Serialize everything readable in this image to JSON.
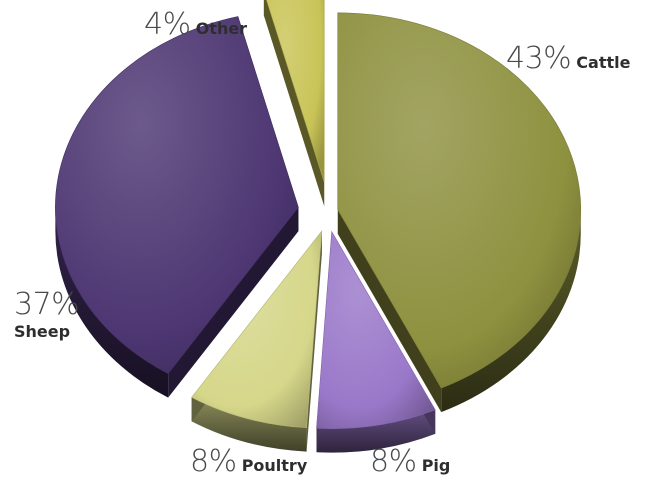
{
  "chart_data": {
    "type": "pie",
    "style": "3d-exploded",
    "slices": [
      {
        "label": "Cattle",
        "value": 43,
        "pct_text": "43%",
        "color": "#8e913f"
      },
      {
        "label": "Pig",
        "value": 8,
        "pct_text": "8%",
        "color": "#9a78c9"
      },
      {
        "label": "Poultry",
        "value": 8,
        "pct_text": "8%",
        "color": "#d6d78a"
      },
      {
        "label": "Sheep",
        "value": 37,
        "pct_text": "37%",
        "color": "#4d3672"
      },
      {
        "label": "Other",
        "value": 4,
        "pct_text": "4%",
        "color": "#c9c457"
      }
    ]
  }
}
